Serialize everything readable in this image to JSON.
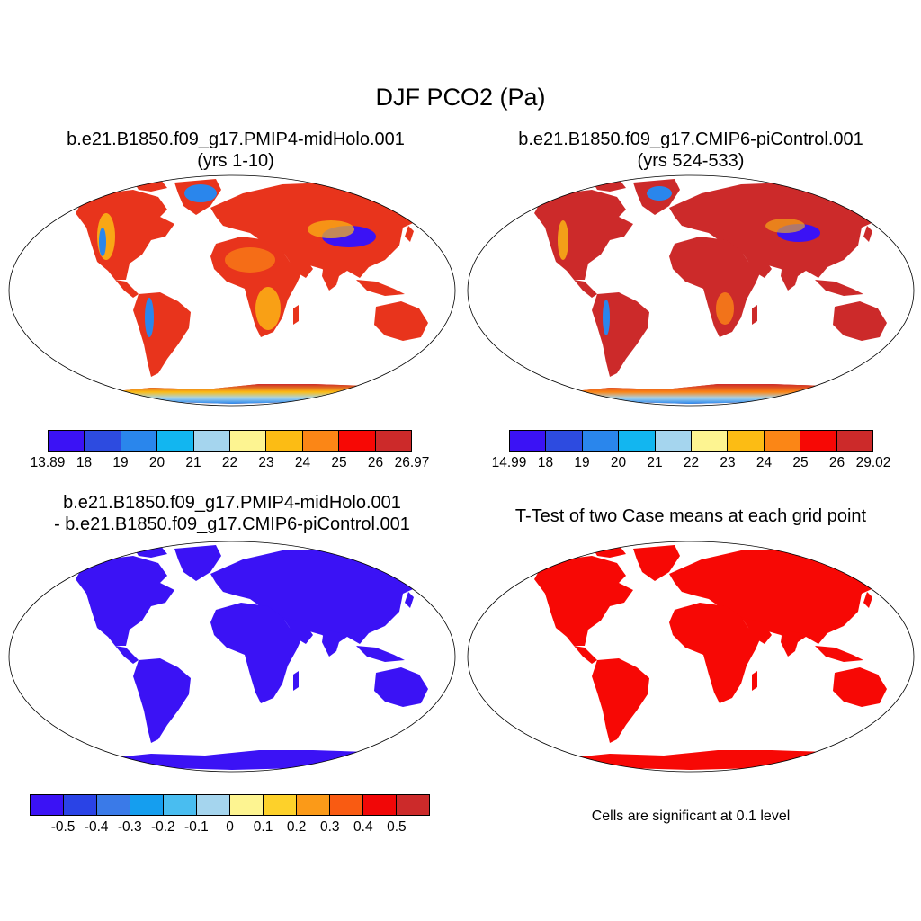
{
  "figure": {
    "title": "DJF PCO2 (Pa)"
  },
  "panels": [
    {
      "title_line1": "b.e21.B1850.f09_g17.PMIP4-midHolo.001",
      "title_line2": "(yrs 1-10)",
      "colorbar": {
        "colors": [
          "#3b12f5",
          "#2d4be0",
          "#2a86ec",
          "#12b6f0",
          "#a5d5ee",
          "#fdf491",
          "#fcbc14",
          "#fb8616",
          "#f70805",
          "#cc2a2a"
        ],
        "tick_labels": [
          "13.89",
          "18",
          "19",
          "20",
          "21",
          "22",
          "23",
          "24",
          "25",
          "26",
          "26.97"
        ]
      }
    },
    {
      "title_line1": "b.e21.B1850.f09_g17.CMIP6-piControl.001",
      "title_line2": "(yrs 524-533)",
      "colorbar": {
        "colors": [
          "#3b12f5",
          "#2d4be0",
          "#2a86ec",
          "#12b6f0",
          "#a5d5ee",
          "#fdf491",
          "#fcbc14",
          "#fb8616",
          "#f70805",
          "#cc2a2a"
        ],
        "tick_labels": [
          "14.99",
          "18",
          "19",
          "20",
          "21",
          "22",
          "23",
          "24",
          "25",
          "26",
          "29.02"
        ]
      }
    },
    {
      "title_line1": "b.e21.B1850.f09_g17.PMIP4-midHolo.001",
      "title_line2": "- b.e21.B1850.f09_g17.CMIP6-piControl.001",
      "colorbar": {
        "colors": [
          "#3b12f5",
          "#2a43e6",
          "#3a7ae8",
          "#159eef",
          "#49bdf0",
          "#a5d5ee",
          "#fdf491",
          "#fdd12a",
          "#fb9a18",
          "#f95b12",
          "#f10707",
          "#cc2a2a"
        ],
        "tick_labels": [
          "-0.5",
          "-0.4",
          "-0.3",
          "-0.2",
          "-0.1",
          "0",
          "0.1",
          "0.2",
          "0.3",
          "0.4",
          "0.5"
        ]
      }
    },
    {
      "title_line1": "T-Test of two Case means at each grid point",
      "note": "Cells are significant at 0.1 level"
    }
  ],
  "map_fill": {
    "diff_color": "#3b12f5",
    "ttest_color": "#f70805"
  }
}
